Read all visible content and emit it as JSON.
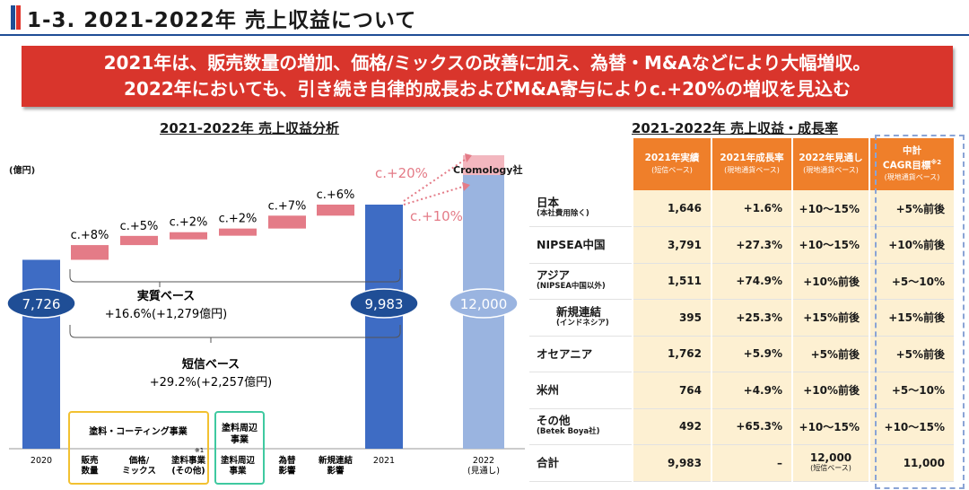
{
  "header": {
    "title": "1-3. 2021-2022年 売上収益について"
  },
  "banner": {
    "line1": "2021年は、販売数量の増加、価格/ミックスの改善に加え、為替・M&Aなどにより大幅増収。",
    "line2": "2022年においても、引き続き自律的成長およびM&A寄与によりc.+20%の増収を見込む"
  },
  "colors": {
    "accent_blue": "#3e6cc4",
    "light_blue": "#9ab4e0",
    "pink": "#e47b87",
    "orange": "#ef7f2a",
    "banner_red": "#d9352c",
    "cell_bg": "#fdf0d2"
  },
  "left_chart": {
    "title": "2021-2022年 売上収益分析",
    "unit": "(億円)",
    "cromology_label": "Cromology社",
    "growth_20": "c.+20%",
    "growth_10": "c.+10%",
    "real_base": {
      "label": "実質ベース",
      "value": "+16.6%(+1,279億円)"
    },
    "tanshin_base": {
      "label": "短信ベース",
      "value": "+29.2%(+2,257億円)"
    },
    "group_paint": "塗料・コーティング事業",
    "group_adjacent": "塗料周辺事業",
    "footnote_mark": "※1"
  },
  "chart_data": {
    "type": "bar",
    "subtype": "waterfall",
    "unit": "億円",
    "categories": [
      "2020",
      "販売数量",
      "価格/ミックス",
      "塗料事業(その他)",
      "塗料周辺事業",
      "為替影響",
      "新規連結影響",
      "2021",
      "2022(見通し)"
    ],
    "bars": [
      {
        "category": "2020",
        "kind": "total",
        "value": 7726,
        "label": "7,726"
      },
      {
        "category": "販売数量",
        "kind": "increment",
        "pct_label": "c.+8%",
        "axis_label": "販売\n数量"
      },
      {
        "category": "価格/ミックス",
        "kind": "increment",
        "pct_label": "c.+5%",
        "axis_label": "価格/\nミックス"
      },
      {
        "category": "塗料事業(その他)",
        "kind": "increment",
        "pct_label": "c.+2%",
        "axis_label": "塗料事業\n(その他)"
      },
      {
        "category": "塗料周辺事業",
        "kind": "increment",
        "pct_label": "c.+2%",
        "axis_label": "塗料周辺\n事業"
      },
      {
        "category": "為替影響",
        "kind": "increment",
        "pct_label": "c.+7%",
        "axis_label": "為替\n影響"
      },
      {
        "category": "新規連結影響",
        "kind": "increment",
        "pct_label": "c.+6%",
        "axis_label": "新規連結\n影響"
      },
      {
        "category": "2021",
        "kind": "total",
        "value": 9983,
        "label": "9,983"
      },
      {
        "category": "2022(見通し)",
        "kind": "total",
        "value": 12000,
        "label": "12,000",
        "axis_label": "2022\n(見通し)"
      }
    ]
  },
  "right_table": {
    "title": "2021-2022年 売上収益・成長率",
    "headers": [
      {
        "main": "2021年実績",
        "sub": "(短信ベース)"
      },
      {
        "main": "2021年成長率",
        "sub": "(現地通貨ベース)"
      },
      {
        "main": "2022年見通し",
        "sub": "(現地通貨ベース)"
      },
      {
        "main": "中計",
        "main2": "CAGR目標",
        "note": "※2",
        "sub": "(現地通貨ベース)"
      }
    ],
    "rows": [
      {
        "region": "日本",
        "sub": "(本社費用除く)",
        "actual": "1,646",
        "growth": "+1.6%",
        "outlook": "+10〜15%",
        "target": "+5%前後"
      },
      {
        "region": "NIPSEA中国",
        "sub": "",
        "actual": "3,791",
        "growth": "+27.3%",
        "outlook": "+10〜15%",
        "target": "+10%前後"
      },
      {
        "region": "アジア",
        "sub": "(NIPSEA中国以外)",
        "actual": "1,511",
        "growth": "+74.9%",
        "outlook": "+10%前後",
        "target": "+5〜10%"
      },
      {
        "region": "新規連結",
        "sub": "(インドネシア)",
        "actual": "395",
        "growth": "+25.3%",
        "outlook": "+15%前後",
        "target": "+15%前後"
      },
      {
        "region": "オセアニア",
        "sub": "",
        "actual": "1,762",
        "growth": "+5.9%",
        "outlook": "+5%前後",
        "target": "+5%前後"
      },
      {
        "region": "米州",
        "sub": "",
        "actual": "764",
        "growth": "+4.9%",
        "outlook": "+10%前後",
        "target": "+5〜10%"
      },
      {
        "region": "その他",
        "sub": "(Betek Boya社)",
        "actual": "492",
        "growth": "+65.3%",
        "outlook": "+10〜15%",
        "target": "+10〜15%"
      },
      {
        "region": "合計",
        "sub": "",
        "actual": "9,983",
        "growth": "–",
        "outlook": "12,000",
        "outlook_sub": "(短信ベース)",
        "target": "11,000"
      }
    ]
  }
}
